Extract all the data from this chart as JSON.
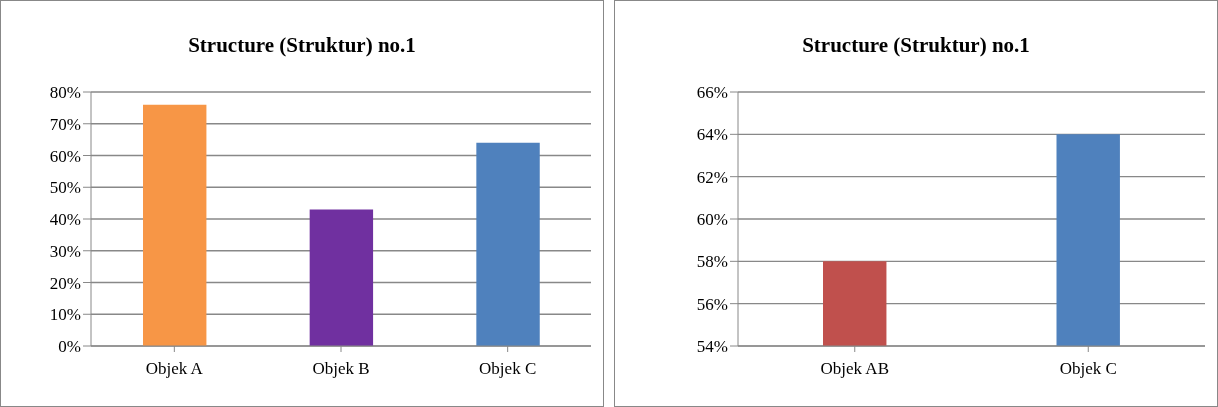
{
  "chart_data": [
    {
      "type": "bar",
      "title": "Structure (Struktur) no.1",
      "categories": [
        "Objek A",
        "Objek B",
        "Objek C"
      ],
      "values": [
        76,
        43,
        64
      ],
      "colors": [
        "#f79646",
        "#7030a0",
        "#4f81bd"
      ],
      "ylim": [
        0,
        80
      ],
      "yticks": [
        {
          "value": 0,
          "label": "0%"
        },
        {
          "value": 10,
          "label": "10%"
        },
        {
          "value": 20,
          "label": "20%"
        },
        {
          "value": 30,
          "label": "30%"
        },
        {
          "value": 40,
          "label": "40%"
        },
        {
          "value": 50,
          "label": "50%"
        },
        {
          "value": 60,
          "label": "60%"
        },
        {
          "value": 70,
          "label": "70%"
        },
        {
          "value": 80,
          "label": "80%"
        }
      ],
      "grid": "y"
    },
    {
      "type": "bar",
      "title": "Structure (Struktur) no.1",
      "categories": [
        "Objek AB",
        "Objek C"
      ],
      "values": [
        58,
        64
      ],
      "colors": [
        "#c0504d",
        "#4f81bd"
      ],
      "ylim": [
        54,
        66
      ],
      "yticks": [
        {
          "value": 54,
          "label": "54%"
        },
        {
          "value": 56,
          "label": "56%"
        },
        {
          "value": 58,
          "label": "58%"
        },
        {
          "value": 60,
          "label": "60%"
        },
        {
          "value": 62,
          "label": "62%"
        },
        {
          "value": 64,
          "label": "64%"
        },
        {
          "value": 66,
          "label": "66%"
        }
      ],
      "grid": "y"
    }
  ]
}
